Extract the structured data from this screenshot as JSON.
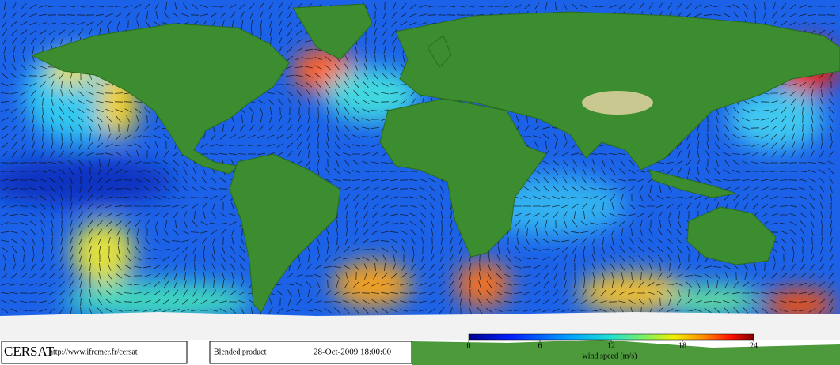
{
  "footer": {
    "logo": "CERSAT",
    "url": "http://www.ifremer.fr/cersat",
    "product": "Blended product",
    "datetime": "28-Oct-2009 18:00:00"
  },
  "colorbar": {
    "label": "wind speed (m/s)",
    "range": [
      0,
      24
    ],
    "ticks": [
      0,
      6,
      12,
      18,
      24
    ]
  }
}
